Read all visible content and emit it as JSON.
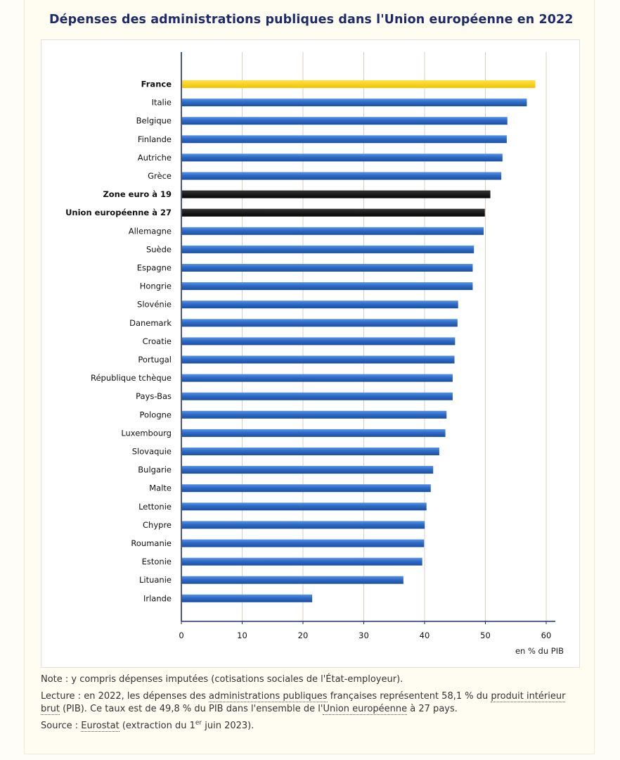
{
  "page": {
    "title": "Dépenses des administrations publiques dans l'Union européenne en 2022"
  },
  "notes": {
    "note": "Note : y compris dépenses imputées (cotisations sociales de l'État-employeur).",
    "lecture_1": "Lecture : en 2022, les dépenses des ",
    "lecture_link_1": "administrations publiques",
    "lecture_2": " françaises représentent 58,1 % du ",
    "lecture_link_2": "produit intérieur brut",
    "lecture_3": " (PIB). Ce taux est de 49,8 % du PIB dans l'ensemble de l'",
    "lecture_link_3": "Union européenne",
    "lecture_4": " à 27 pays.",
    "source_1": "Source : ",
    "source_link": "Eurostat",
    "source_2": " (extraction du 1",
    "source_sup": "er",
    "source_3": " juin 2023)."
  },
  "chart_data": {
    "type": "bar",
    "orientation": "horizontal",
    "title": "Dépenses des administrations publiques dans l'Union européenne en 2022",
    "xlabel": "en % du PIB",
    "xlim": [
      0,
      60
    ],
    "xticks": [
      0,
      10,
      20,
      30,
      40,
      50,
      60
    ],
    "grid": "vertical",
    "colors": {
      "default": "#2d6bc8",
      "highlight": "#f7cf07",
      "aggregate": "#111111",
      "axis": "#1e2b6b",
      "grid": "#d8cfc0"
    },
    "categories": [
      "France",
      "Italie",
      "Belgique",
      "Finlande",
      "Autriche",
      "Grèce",
      "Zone euro à 19",
      "Union européenne à 27",
      "Allemagne",
      "Suède",
      "Espagne",
      "Hongrie",
      "Slovénie",
      "Danemark",
      "Croatie",
      "Portugal",
      "République tchèque",
      "Pays-Bas",
      "Pologne",
      "Luxembourg",
      "Slovaquie",
      "Bulgarie",
      "Malte",
      "Lettonie",
      "Chypre",
      "Roumanie",
      "Estonie",
      "Lituanie",
      "Irlande"
    ],
    "values": [
      58.1,
      56.7,
      53.5,
      53.4,
      52.7,
      52.5,
      50.7,
      49.8,
      49.6,
      48.0,
      47.8,
      47.8,
      45.4,
      45.3,
      44.9,
      44.8,
      44.5,
      44.5,
      43.5,
      43.3,
      42.3,
      41.3,
      40.9,
      40.2,
      39.9,
      39.8,
      39.5,
      36.4,
      21.4
    ],
    "styles": [
      "highlight",
      "default",
      "default",
      "default",
      "default",
      "default",
      "aggregate",
      "aggregate",
      "default",
      "default",
      "default",
      "default",
      "default",
      "default",
      "default",
      "default",
      "default",
      "default",
      "default",
      "default",
      "default",
      "default",
      "default",
      "default",
      "default",
      "default",
      "default",
      "default",
      "default"
    ]
  }
}
